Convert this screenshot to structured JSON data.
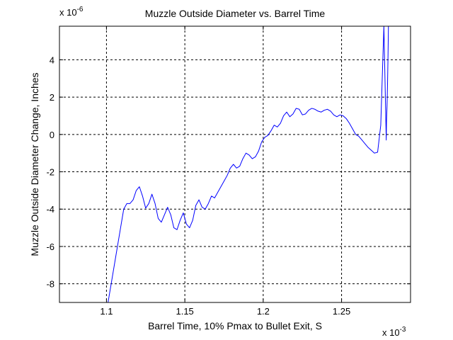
{
  "chart_data": {
    "type": "line",
    "title": "Muzzle Outside Diameter vs. Barrel Time",
    "xlabel": "Barrel Time, 10% Pmax to Bullet Exit, S",
    "ylabel": "Muzzle Outside Diameter Change, Inches",
    "x_exponent_label": "x 10",
    "x_exponent": "-3",
    "y_exponent_label": "x 10",
    "y_exponent": "-6",
    "xlim": [
      1.07,
      1.294
    ],
    "ylim": [
      -9,
      5.8
    ],
    "x_ticks": [
      1.1,
      1.15,
      1.2,
      1.25
    ],
    "x_tick_labels": [
      "1.1",
      "1.15",
      "1.2",
      "1.25"
    ],
    "y_ticks": [
      -8,
      -6,
      -4,
      -2,
      0,
      2,
      4
    ],
    "y_tick_labels": [
      "-8",
      "-6",
      "-4",
      "-2",
      "0",
      "2",
      "4"
    ],
    "grid": true,
    "line_color": "#0000ff",
    "series": [
      {
        "x": [
          1.101,
          1.103,
          1.106,
          1.109,
          1.111,
          1.113,
          1.115,
          1.117,
          1.119,
          1.121,
          1.123,
          1.125,
          1.127,
          1.129,
          1.131,
          1.133,
          1.135,
          1.137,
          1.139,
          1.141,
          1.143,
          1.145,
          1.147,
          1.149,
          1.151,
          1.153,
          1.155,
          1.157,
          1.159,
          1.161,
          1.163,
          1.165,
          1.167,
          1.169,
          1.171,
          1.173,
          1.175,
          1.177,
          1.179,
          1.181,
          1.183,
          1.185,
          1.187,
          1.189,
          1.191,
          1.193,
          1.195,
          1.197,
          1.199,
          1.201,
          1.203,
          1.205,
          1.207,
          1.209,
          1.211,
          1.213,
          1.215,
          1.217,
          1.219,
          1.221,
          1.223,
          1.225,
          1.227,
          1.229,
          1.231,
          1.233,
          1.235,
          1.237,
          1.239,
          1.241,
          1.243,
          1.245,
          1.247,
          1.249,
          1.251,
          1.253,
          1.255,
          1.257,
          1.259,
          1.261,
          1.263,
          1.265,
          1.267,
          1.269,
          1.271,
          1.273,
          1.275,
          1.277,
          1.2785,
          1.2787,
          1.279,
          1.2793,
          1.2796,
          1.2799
        ],
        "y": [
          -9.0,
          -8.0,
          -6.5,
          -5.0,
          -4.0,
          -3.7,
          -3.7,
          -3.5,
          -3.0,
          -2.8,
          -3.3,
          -3.95,
          -3.7,
          -3.2,
          -3.7,
          -4.5,
          -4.7,
          -4.3,
          -3.9,
          -4.3,
          -5.0,
          -5.1,
          -4.6,
          -4.2,
          -4.8,
          -5.0,
          -4.6,
          -3.8,
          -3.5,
          -3.9,
          -4.0,
          -3.7,
          -3.3,
          -3.4,
          -3.1,
          -2.8,
          -2.5,
          -2.2,
          -1.8,
          -1.6,
          -1.8,
          -1.7,
          -1.3,
          -1.0,
          -1.1,
          -1.3,
          -1.2,
          -0.9,
          -0.4,
          -0.15,
          -0.05,
          0.2,
          0.5,
          0.4,
          0.6,
          1.0,
          1.2,
          0.95,
          1.1,
          1.4,
          1.35,
          1.05,
          1.1,
          1.3,
          1.4,
          1.35,
          1.25,
          1.2,
          1.3,
          1.35,
          1.25,
          1.05,
          0.95,
          1.05,
          1.0,
          0.85,
          0.6,
          0.3,
          0.0,
          -0.1,
          -0.3,
          -0.5,
          -0.7,
          -0.85,
          -1.0,
          -0.95,
          0.5,
          5.8,
          -0.3,
          0.8,
          1.5,
          2.6,
          4.0,
          5.8
        ]
      }
    ]
  }
}
